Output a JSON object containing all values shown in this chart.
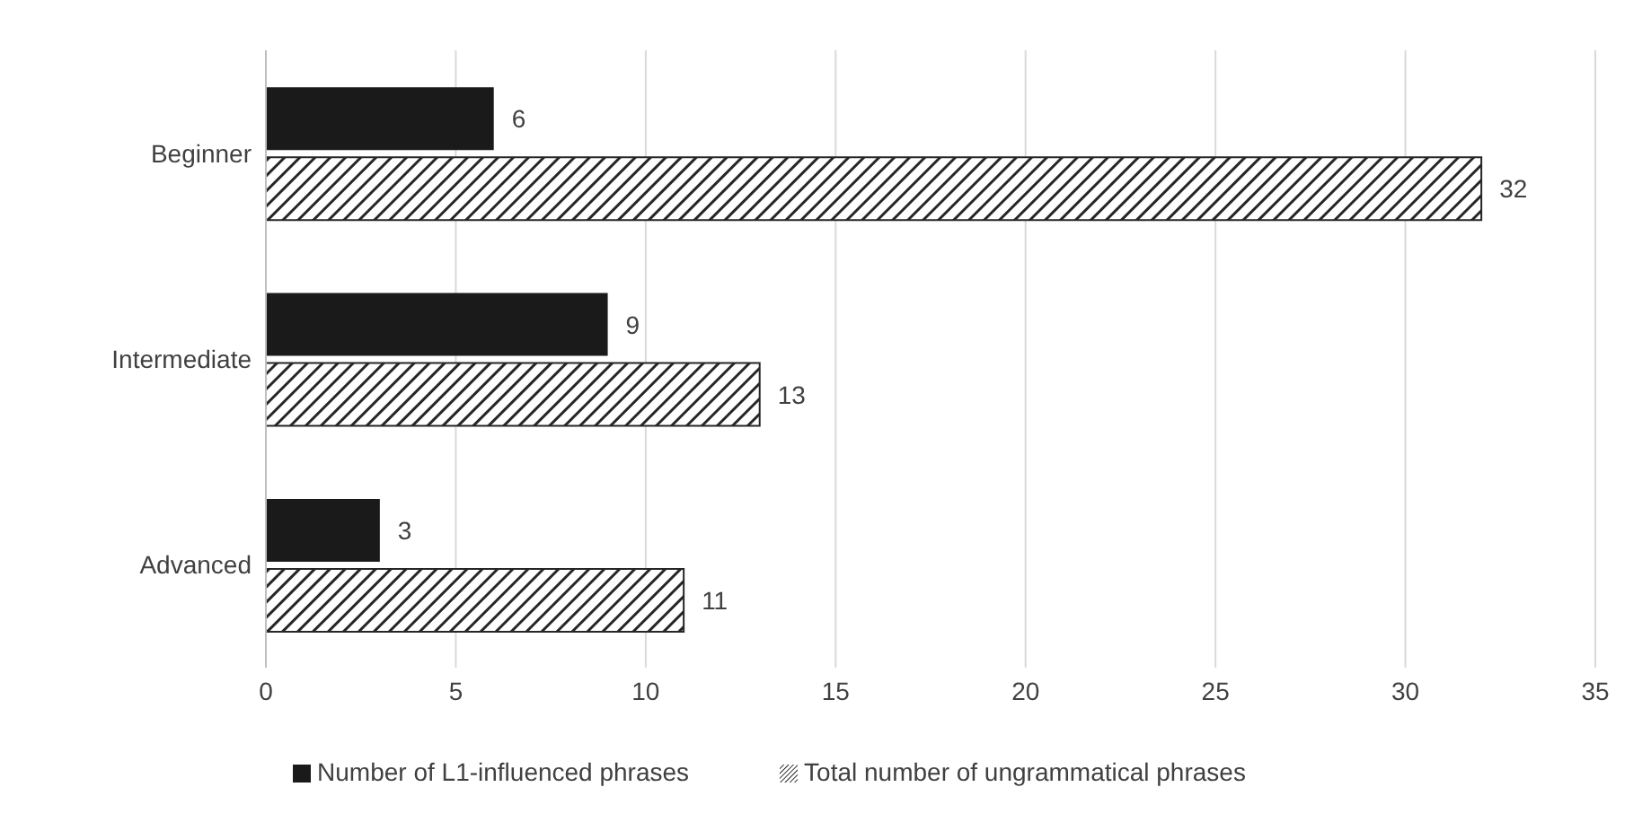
{
  "chart_data": {
    "type": "bar",
    "orientation": "horizontal",
    "categories": [
      "Beginner",
      "Intermediate",
      "Advanced"
    ],
    "series": [
      {
        "name": "Number of L1-influenced phrases",
        "color": "#1a1a1a",
        "values": [
          6,
          9,
          3
        ]
      },
      {
        "name": "Total number of ungrammatical phrases",
        "color": "#262626",
        "values": [
          32,
          13,
          11
        ]
      }
    ],
    "xlim": [
      0,
      35
    ],
    "xticks": [
      0,
      5,
      10,
      15,
      20,
      25,
      30,
      35
    ],
    "grid": "x",
    "legend": "bottom",
    "data_labels": true
  }
}
